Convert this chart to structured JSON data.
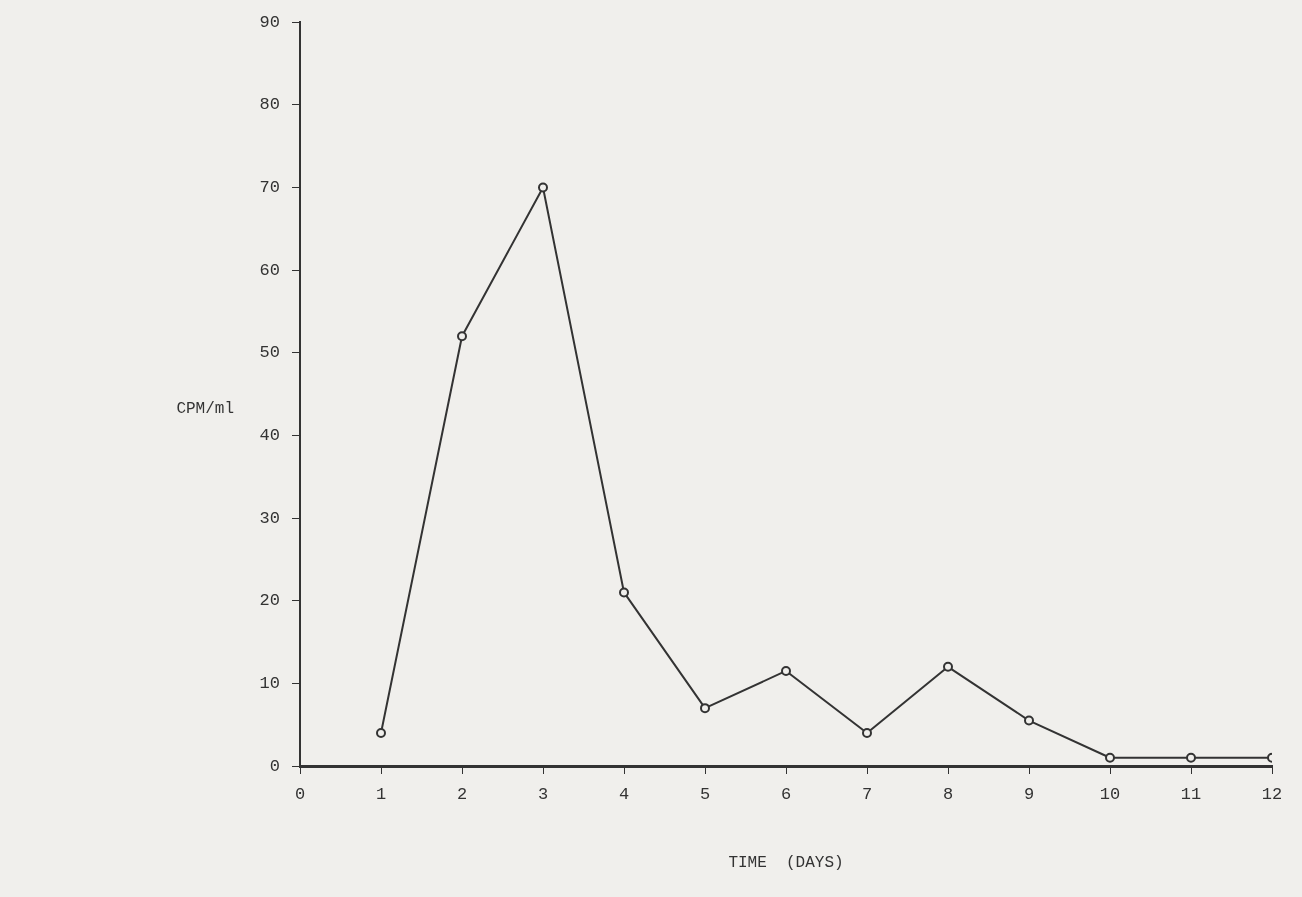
{
  "chart_data": {
    "type": "line",
    "xlabel": "TIME  (DAYS)",
    "ylabel": "CPM/ml",
    "x": [
      1,
      2,
      3,
      4,
      5,
      6,
      7,
      8,
      9,
      10,
      11,
      12
    ],
    "series": [
      {
        "color": "#333333",
        "values": [
          4,
          52,
          70,
          21,
          7,
          11.5,
          4,
          12,
          5.5,
          1,
          1,
          1
        ]
      }
    ],
    "xlim": [
      0,
      12
    ],
    "xticks": [
      0,
      1,
      2,
      3,
      4,
      5,
      6,
      7,
      8,
      9,
      10,
      11,
      12
    ],
    "ylim": [
      0,
      90
    ],
    "yticks": [
      0,
      10,
      20,
      30,
      40,
      50,
      60,
      70,
      80,
      90
    ],
    "grid": false,
    "legend": false,
    "marker": "circle",
    "line_style": "solid"
  }
}
